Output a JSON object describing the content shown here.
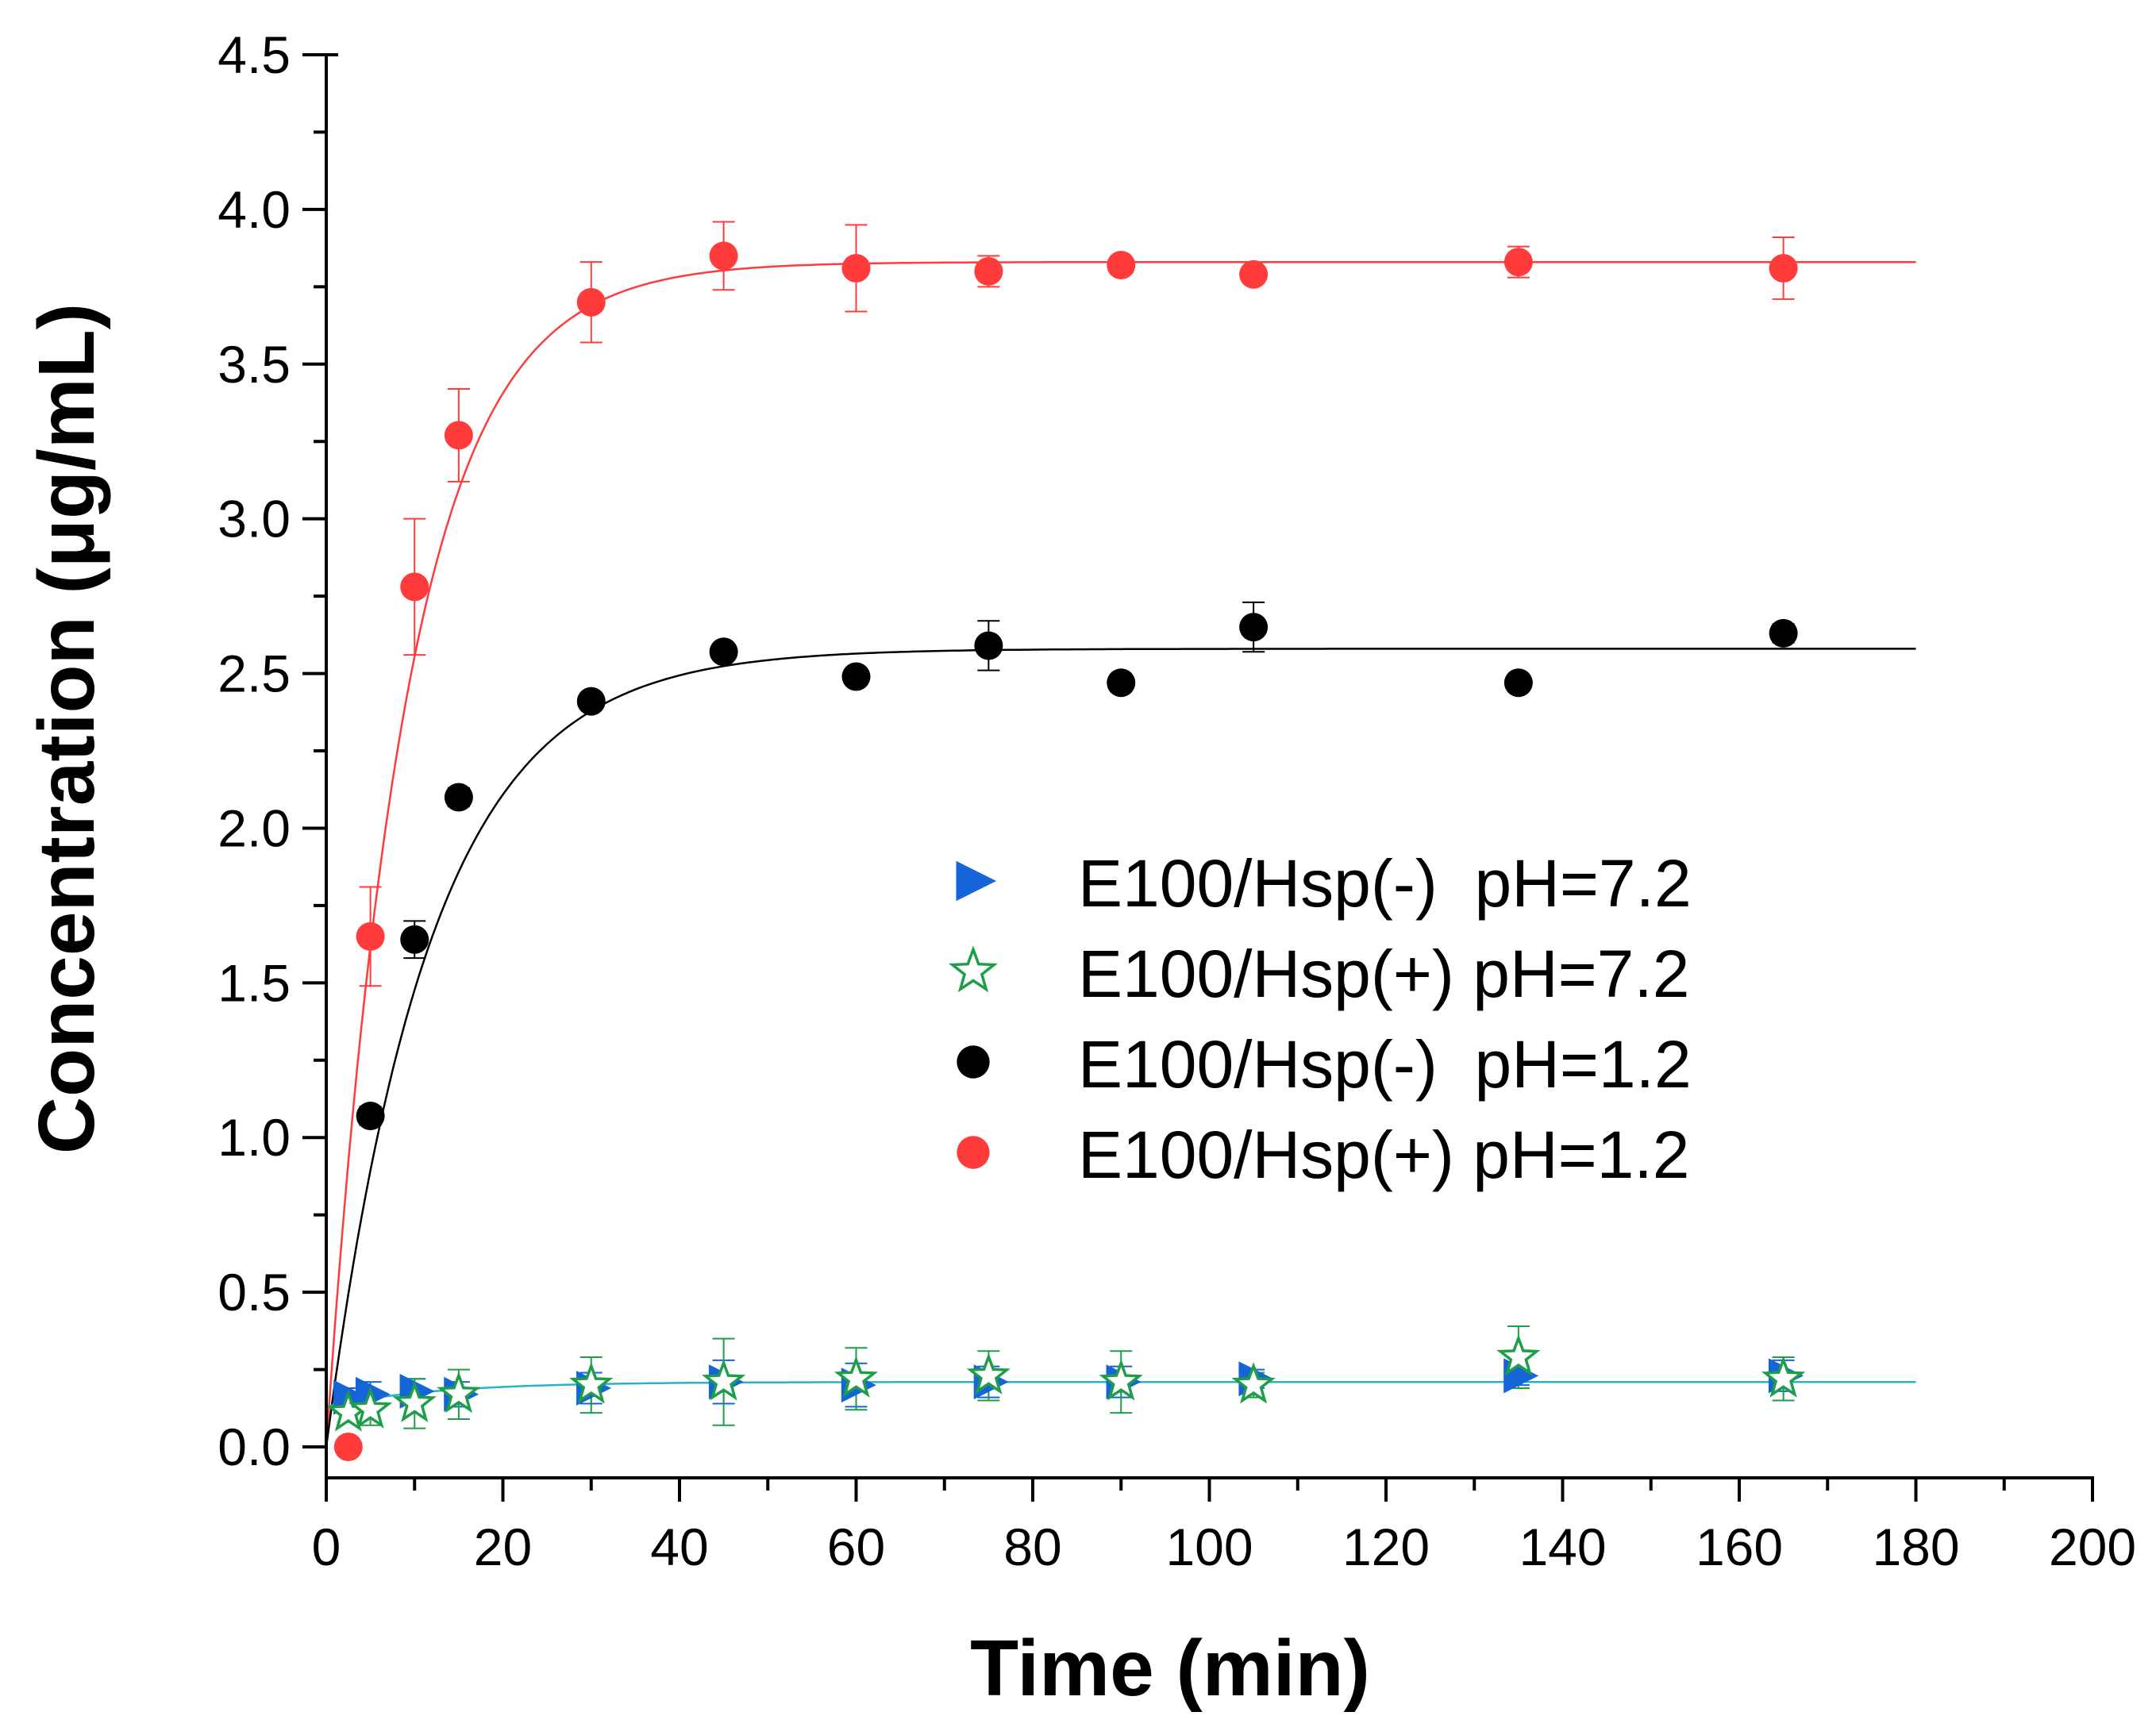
{
  "chart_data": {
    "type": "scatter",
    "title": "",
    "xlabel": "Time (min)",
    "ylabel": "Concentration (μg/mL)",
    "xlim": [
      0,
      200
    ],
    "ylim": [
      -0.1,
      4.5
    ],
    "x_ticks": [
      0,
      20,
      40,
      60,
      80,
      100,
      120,
      140,
      160,
      180,
      200
    ],
    "x_tick_labels": [
      "0",
      "20",
      "40",
      "60",
      "80",
      "100",
      "120",
      "140",
      "160",
      "180",
      "200"
    ],
    "y_ticks": [
      0.0,
      0.5,
      1.0,
      1.5,
      2.0,
      2.5,
      3.0,
      3.5,
      4.0,
      4.5
    ],
    "y_tick_labels": [
      "0.0",
      "0.5",
      "1.0",
      "1.5",
      "2.0",
      "2.5",
      "3.0",
      "3.5",
      "4.0",
      "4.5"
    ],
    "legend_position": "center-right",
    "series": [
      {
        "name": "E100/Hsp(-)  pH=7.2",
        "marker": "triangle-right",
        "color": "#1565d8",
        "x": [
          2.5,
          5,
          10,
          15,
          30,
          45,
          60,
          75,
          90,
          105,
          135,
          165
        ],
        "y": [
          0.16,
          0.17,
          0.18,
          0.17,
          0.19,
          0.21,
          0.2,
          0.21,
          0.21,
          0.22,
          0.23,
          0.23
        ],
        "err": [
          0.03,
          0.04,
          0.04,
          0.04,
          0.05,
          0.07,
          0.07,
          0.05,
          0.05,
          0.03,
          0.03,
          0.05
        ]
      },
      {
        "name": "E100/Hsp(+) pH=7.2",
        "marker": "star-open",
        "color": "#1e9e48",
        "x": [
          2.5,
          5,
          10,
          15,
          30,
          45,
          60,
          75,
          90,
          105,
          135,
          165
        ],
        "y": [
          0.11,
          0.12,
          0.14,
          0.17,
          0.2,
          0.21,
          0.22,
          0.23,
          0.21,
          0.2,
          0.29,
          0.22
        ],
        "err": [
          0.03,
          0.05,
          0.08,
          0.08,
          0.09,
          0.14,
          0.1,
          0.08,
          0.1,
          0.04,
          0.1,
          0.07
        ]
      },
      {
        "name": "E100/Hsp(-)  pH=1.2",
        "marker": "circle",
        "color": "#000000",
        "x": [
          5,
          10,
          15,
          30,
          45,
          60,
          75,
          90,
          105,
          135,
          165
        ],
        "y": [
          1.07,
          1.64,
          2.1,
          2.41,
          2.57,
          2.49,
          2.59,
          2.47,
          2.65,
          2.47,
          2.63
        ],
        "err": [
          0.03,
          0.06,
          0.03,
          0.02,
          0.02,
          0.02,
          0.08,
          0.01,
          0.08,
          0.01,
          0.03
        ]
      },
      {
        "name": "E100/Hsp(+) pH=1.2",
        "marker": "circle",
        "color": "#ff3b3b",
        "x": [
          2.5,
          5,
          10,
          15,
          30,
          45,
          60,
          75,
          90,
          105,
          135,
          165
        ],
        "y": [
          0.0,
          1.65,
          2.78,
          3.27,
          3.7,
          3.85,
          3.81,
          3.8,
          3.82,
          3.79,
          3.83,
          3.81
        ],
        "err": [
          0.0,
          0.16,
          0.22,
          0.15,
          0.13,
          0.11,
          0.14,
          0.05,
          0.02,
          0.02,
          0.05,
          0.1
        ]
      }
    ],
    "fits": [
      {
        "series": "E100/Hsp(+) pH=1.2",
        "model": "y = A*(1-exp(-k*t))",
        "A": 3.83,
        "k": 0.11,
        "x_range": [
          0,
          180
        ],
        "color": "#ff3b3b"
      },
      {
        "series": "E100/Hsp(-)  pH=1.2",
        "model": "y = A*(1-exp(-k*t))",
        "A": 2.58,
        "k": 0.085,
        "x_range": [
          0,
          180
        ],
        "color": "#000000"
      },
      {
        "series": "pH=7.2",
        "model": "y = y0 + (A-y0)*(1-exp(-k*t))",
        "y0": 0.13,
        "A": 0.21,
        "k": 0.08,
        "x_range": [
          0,
          180
        ],
        "color": "#28b3c8"
      }
    ]
  }
}
